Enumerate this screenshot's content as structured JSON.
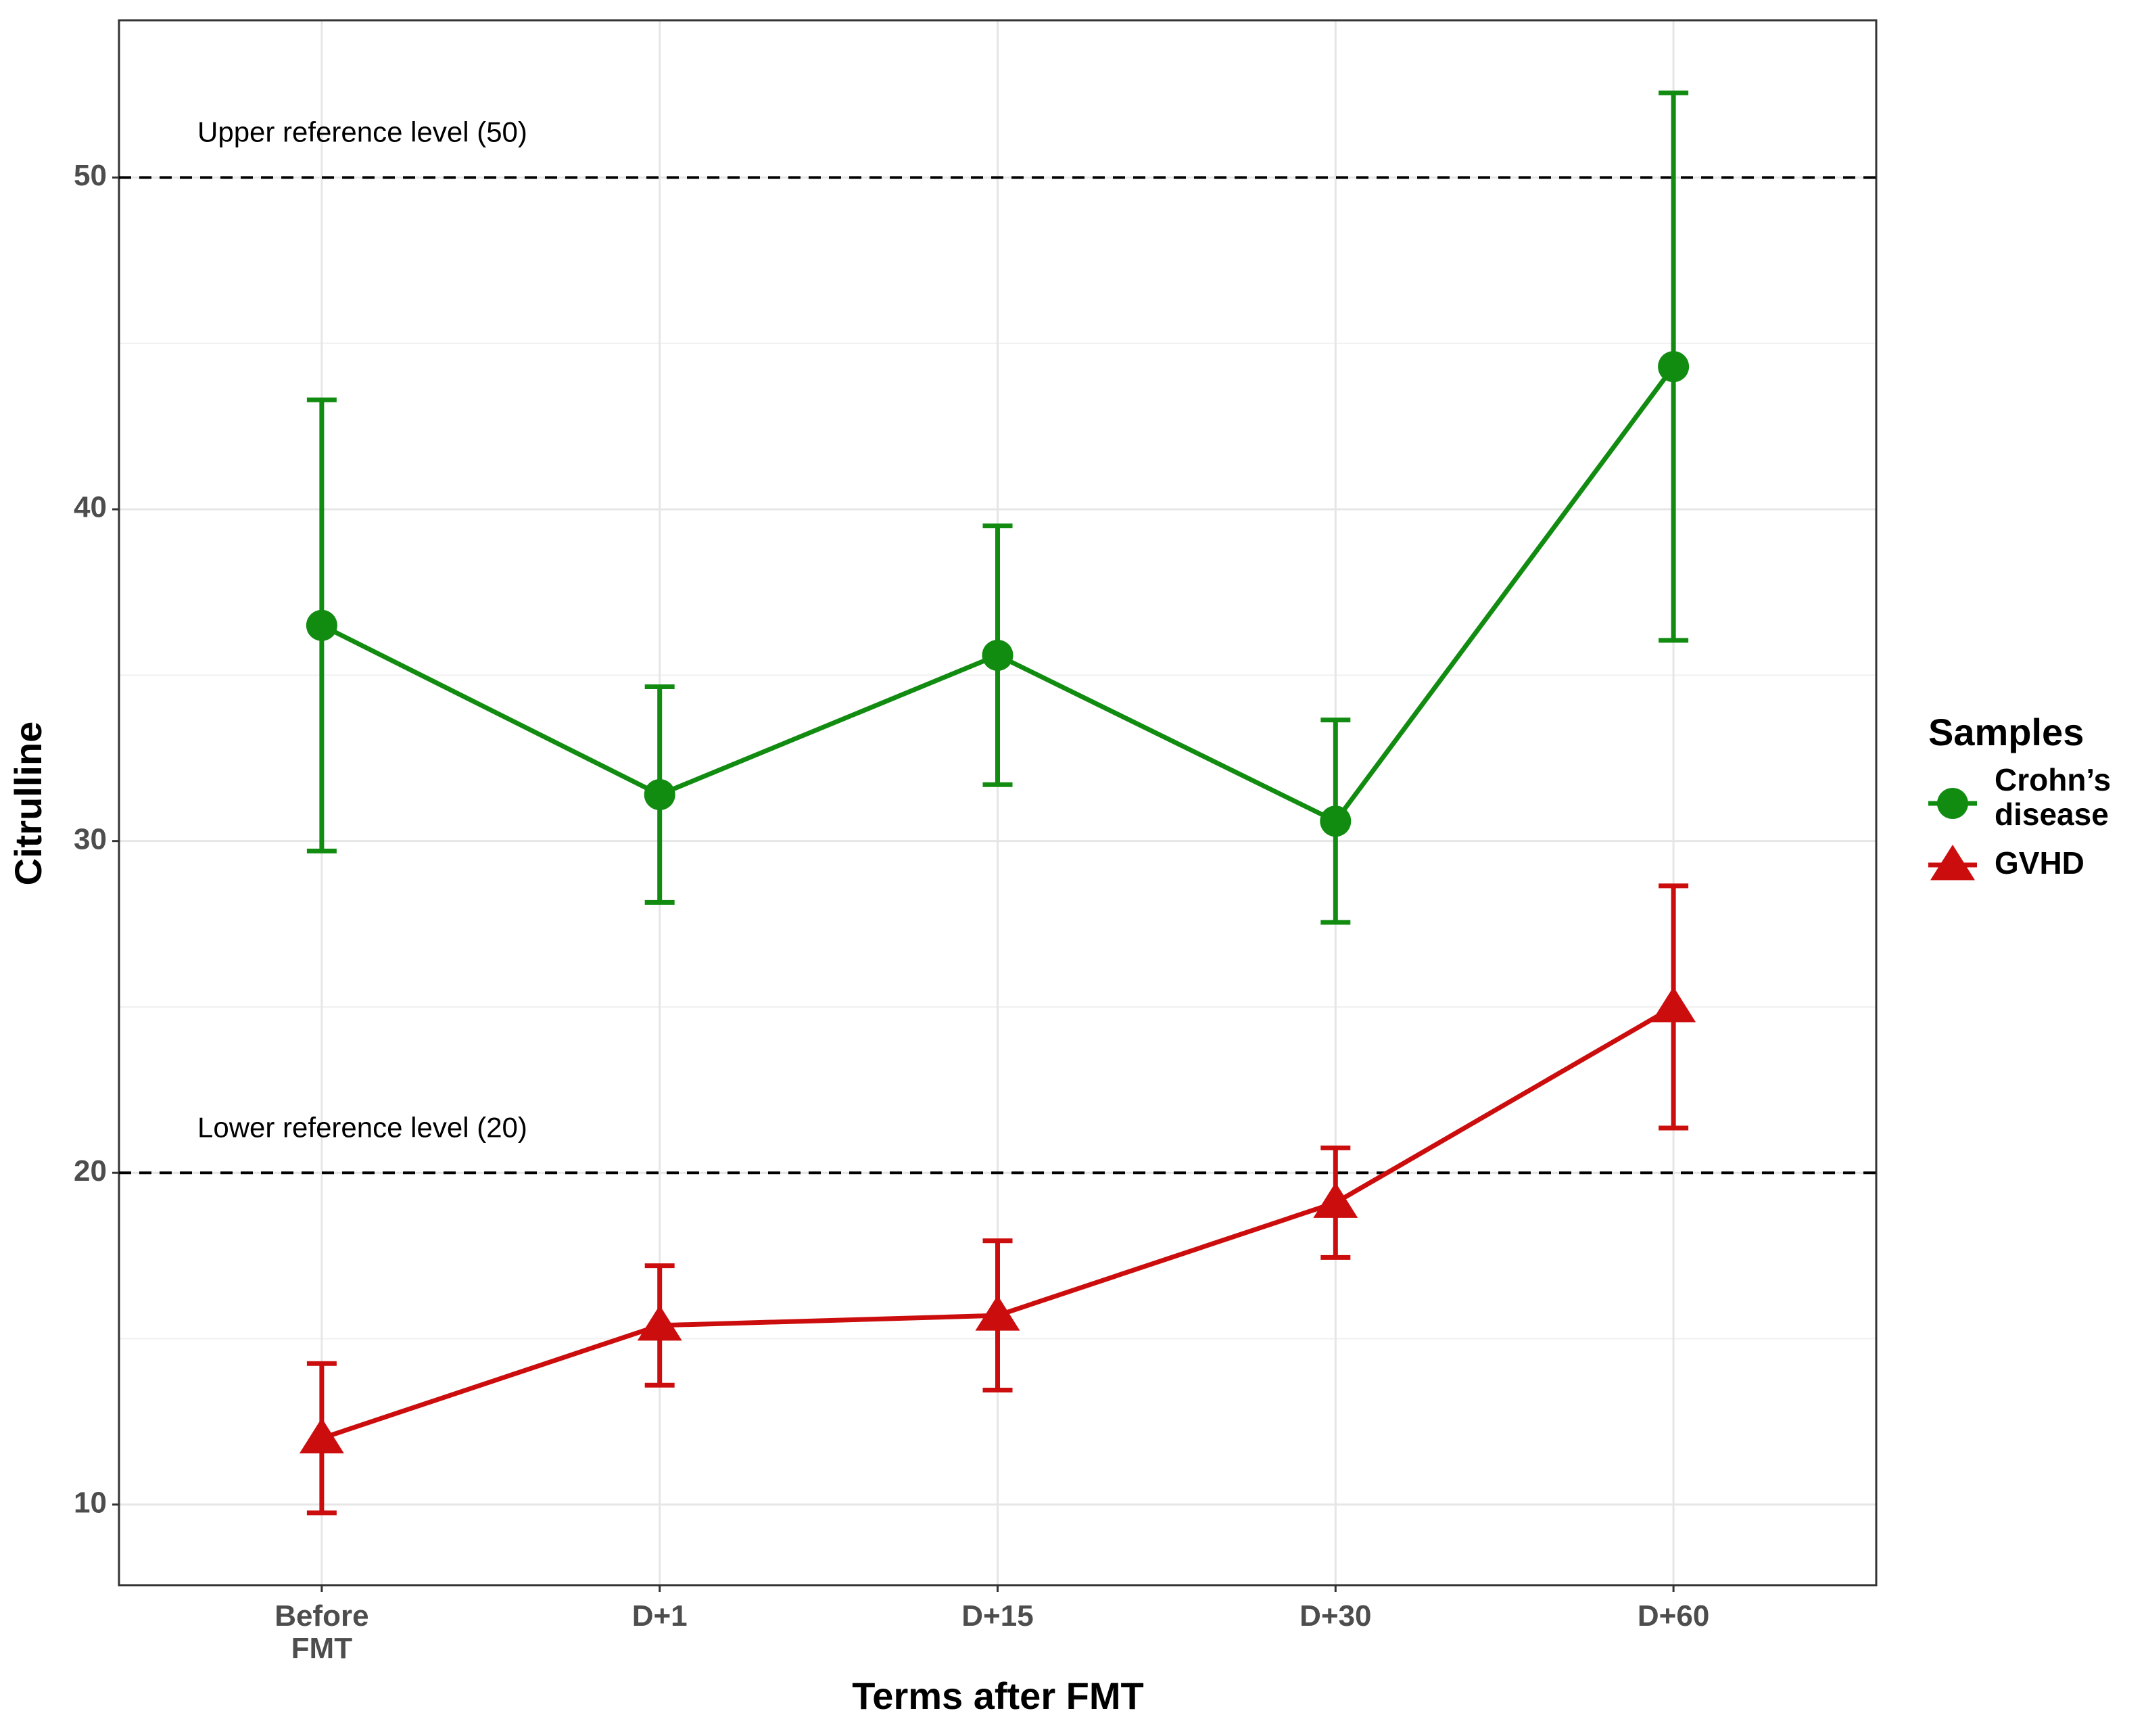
{
  "chart_data": {
    "type": "line",
    "x_label": "Terms after FMT",
    "y_label": "Citrulline",
    "categories": [
      "Before FMT",
      "D+1",
      "D+15",
      "D+30",
      "D+60"
    ],
    "series": [
      {
        "name": "Crohn’s disease",
        "color": "#118c11",
        "marker": "circle",
        "values": [
          36.5,
          31.4,
          35.6,
          30.6,
          44.3
        ],
        "errors": [
          6.8,
          3.25,
          3.9,
          3.05,
          8.25
        ]
      },
      {
        "name": "GVHD",
        "color": "#cc0d0d",
        "marker": "triangle",
        "values": [
          12.0,
          15.4,
          15.7,
          19.1,
          25.0
        ],
        "errors": [
          2.25,
          1.8,
          2.25,
          1.65,
          3.65
        ]
      }
    ],
    "ylim": [
      7.57,
      54.74
    ],
    "yticks": [
      10,
      20,
      30,
      40,
      50
    ],
    "y_minor_grid": [
      15,
      25,
      35,
      45
    ],
    "grid": true,
    "reference_lines": [
      {
        "value": 50,
        "label": "Upper reference level (50)"
      },
      {
        "value": 20,
        "label": "Lower reference level (20)"
      }
    ],
    "legend_title": "Samples",
    "legend_position": "right"
  }
}
